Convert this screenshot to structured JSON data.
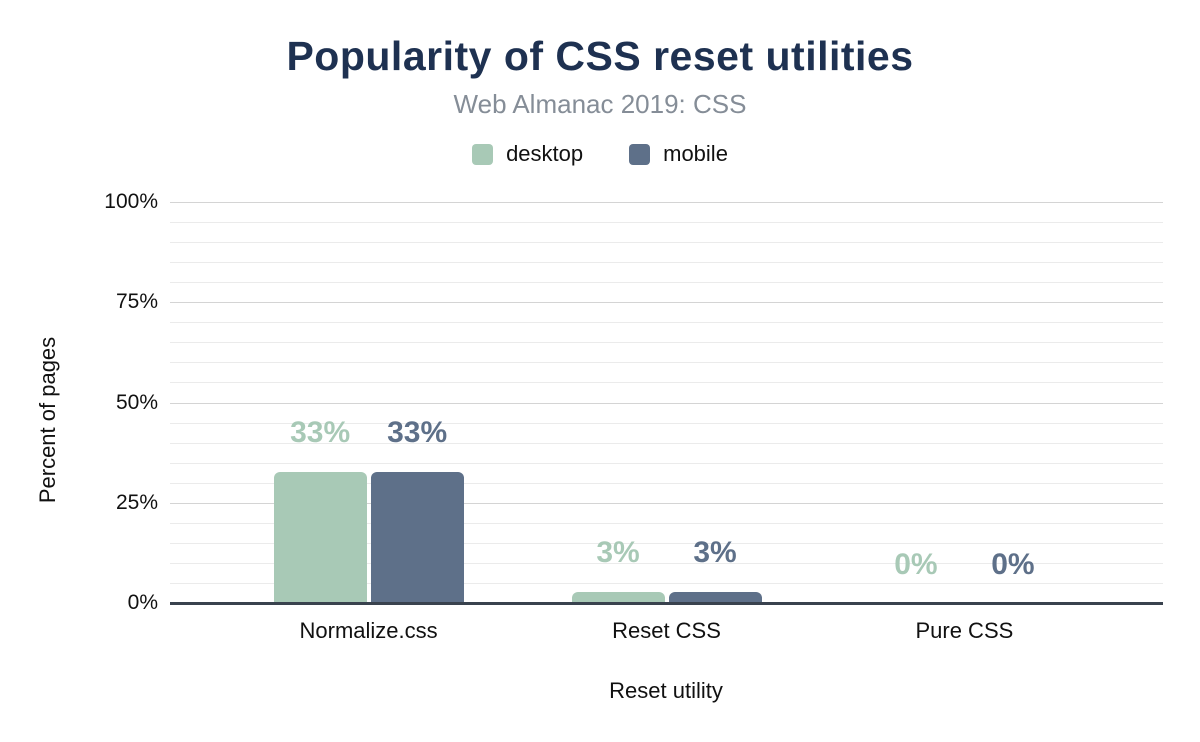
{
  "chart_data": {
    "type": "bar",
    "title": "Popularity of CSS reset utilities",
    "subtitle": "Web Almanac 2019: CSS",
    "xlabel": "Reset utility",
    "ylabel": "Percent of pages",
    "categories": [
      "Normalize.css",
      "Reset CSS",
      "Pure CSS"
    ],
    "series": [
      {
        "name": "desktop",
        "color": "#a8c9b6",
        "values": [
          33,
          3,
          0
        ],
        "data_labels": [
          "33%",
          "3%",
          "0%"
        ]
      },
      {
        "name": "mobile",
        "color": "#5e7089",
        "values": [
          33,
          3,
          0
        ],
        "data_labels": [
          "33%",
          "3%",
          "0%"
        ]
      }
    ],
    "ylim": [
      0,
      100
    ],
    "y_ticks": [
      {
        "value": 0,
        "label": "0%"
      },
      {
        "value": 25,
        "label": "25%"
      },
      {
        "value": 50,
        "label": "50%"
      },
      {
        "value": 75,
        "label": "75%"
      },
      {
        "value": 100,
        "label": "100%"
      }
    ],
    "grid": {
      "on": true,
      "minor_step": 5,
      "major_step": 25
    },
    "legend_position": "top"
  },
  "colors": {
    "title": "#1e3151",
    "subtitle": "#858d97",
    "axis_line": "#39424e",
    "gridline_minor": "#ebebeb",
    "gridline_major": "#d4d4d4",
    "desktop_series": "#a8c9b6",
    "mobile_series": "#5e7089",
    "background": "#ffffff"
  }
}
